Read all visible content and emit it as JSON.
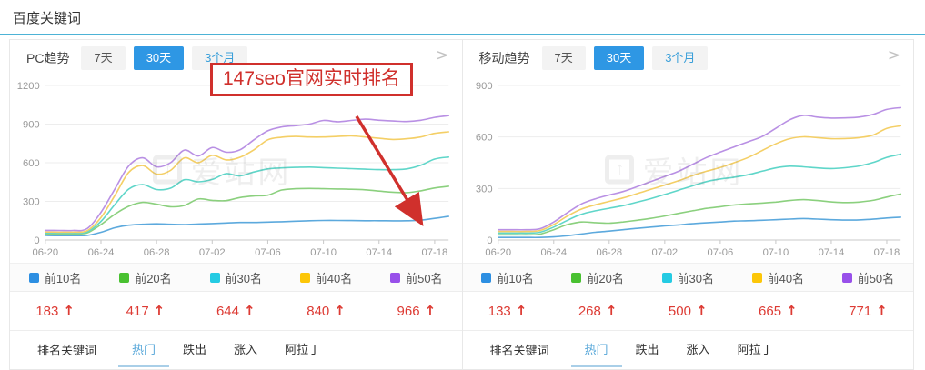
{
  "page": {
    "title": "百度关键词"
  },
  "icons": {
    "chevron_right": ">",
    "up_arrow": "↑",
    "watermark_logo": "↑"
  },
  "watermark": "爱站网",
  "annotation": {
    "text": "147seo官网实时排名",
    "color": "#d0302c"
  },
  "colors": {
    "accent_blue": "#2e97e4",
    "title_rule": "#4db3d6",
    "stat_red": "#dd3b34",
    "top10": "#2d8fe2",
    "top20": "#49c131",
    "top30": "#25cbe3",
    "top40": "#fcc608",
    "top50": "#9850ea"
  },
  "panels": [
    {
      "label": "PC趋势",
      "tabs": [
        {
          "label": "7天",
          "active": false
        },
        {
          "label": "30天",
          "active": true
        },
        {
          "label": "3个月",
          "active": false
        }
      ],
      "legend": [
        {
          "label": "前10名",
          "color": "#2d8fe2"
        },
        {
          "label": "前20名",
          "color": "#49c131"
        },
        {
          "label": "前30名",
          "color": "#25cbe3"
        },
        {
          "label": "前40名",
          "color": "#fcc608"
        },
        {
          "label": "前50名",
          "color": "#9850ea"
        }
      ],
      "values": [
        {
          "value": 183,
          "direction": "up"
        },
        {
          "value": 417,
          "direction": "up"
        },
        {
          "value": 644,
          "direction": "up"
        },
        {
          "value": 840,
          "direction": "up"
        },
        {
          "value": 966,
          "direction": "up"
        }
      ],
      "bottom_tabs": [
        {
          "label": "排名关键词",
          "type": "label"
        },
        {
          "label": "热门",
          "active": true
        },
        {
          "label": "跌出",
          "active": false
        },
        {
          "label": "涨入",
          "active": false
        },
        {
          "label": "阿拉丁",
          "active": false
        }
      ]
    },
    {
      "label": "移动趋势",
      "tabs": [
        {
          "label": "7天",
          "active": false
        },
        {
          "label": "30天",
          "active": true
        },
        {
          "label": "3个月",
          "active": false
        }
      ],
      "legend": [
        {
          "label": "前10名",
          "color": "#2d8fe2"
        },
        {
          "label": "前20名",
          "color": "#49c131"
        },
        {
          "label": "前30名",
          "color": "#25cbe3"
        },
        {
          "label": "前40名",
          "color": "#fcc608"
        },
        {
          "label": "前50名",
          "color": "#9850ea"
        }
      ],
      "values": [
        {
          "value": 133,
          "direction": "up"
        },
        {
          "value": 268,
          "direction": "up"
        },
        {
          "value": 500,
          "direction": "up"
        },
        {
          "value": 665,
          "direction": "up"
        },
        {
          "value": 771,
          "direction": "up"
        }
      ],
      "bottom_tabs": [
        {
          "label": "排名关键词",
          "type": "label"
        },
        {
          "label": "热门",
          "active": true
        },
        {
          "label": "跌出",
          "active": false
        },
        {
          "label": "涨入",
          "active": false
        },
        {
          "label": "阿拉丁",
          "active": false
        }
      ]
    }
  ],
  "chart_data": [
    {
      "type": "line",
      "title": "PC趋势 30天",
      "x": [
        "06-20",
        "06-21",
        "06-22",
        "06-23",
        "06-24",
        "06-25",
        "06-26",
        "06-27",
        "06-28",
        "06-29",
        "06-30",
        "07-01",
        "07-02",
        "07-03",
        "07-04",
        "07-05",
        "07-06",
        "07-07",
        "07-08",
        "07-09",
        "07-10",
        "07-11",
        "07-12",
        "07-13",
        "07-14",
        "07-15",
        "07-16",
        "07-17",
        "07-18",
        "07-19"
      ],
      "x_labeled_every": 4,
      "ylim": [
        0,
        1200
      ],
      "yticks": [
        0,
        300,
        600,
        900,
        1200
      ],
      "grid": true,
      "legend_position": "bottom",
      "series": [
        {
          "name": "前10名",
          "color": "#5ca9dd",
          "values": [
            35,
            34,
            34,
            36,
            60,
            95,
            115,
            122,
            126,
            122,
            120,
            124,
            128,
            132,
            136,
            136,
            139,
            142,
            146,
            150,
            152,
            152,
            151,
            150,
            150,
            149,
            150,
            154,
            168,
            183
          ]
        },
        {
          "name": "前20名",
          "color": "#8bd07e",
          "values": [
            48,
            48,
            48,
            55,
            120,
            200,
            262,
            292,
            278,
            258,
            268,
            318,
            308,
            306,
            330,
            342,
            348,
            388,
            398,
            400,
            398,
            396,
            394,
            390,
            380,
            371,
            368,
            382,
            404,
            417
          ]
        },
        {
          "name": "前30名",
          "color": "#5fd6c9",
          "values": [
            55,
            54,
            54,
            62,
            145,
            275,
            395,
            430,
            392,
            402,
            468,
            452,
            470,
            515,
            498,
            528,
            552,
            560,
            564,
            566,
            562,
            558,
            554,
            550,
            546,
            546,
            552,
            580,
            628,
            644
          ]
        },
        {
          "name": "前40名",
          "color": "#f4cf66",
          "values": [
            62,
            61,
            61,
            72,
            175,
            345,
            525,
            578,
            512,
            540,
            638,
            600,
            658,
            622,
            642,
            700,
            778,
            798,
            804,
            800,
            800,
            804,
            808,
            800,
            790,
            781,
            786,
            800,
            828,
            840
          ]
        },
        {
          "name": "前50名",
          "color": "#b990e4",
          "values": [
            75,
            74,
            74,
            88,
            215,
            395,
            575,
            638,
            568,
            600,
            698,
            652,
            718,
            682,
            700,
            778,
            848,
            878,
            888,
            900,
            928,
            918,
            928,
            938,
            930,
            924,
            920,
            930,
            952,
            966
          ]
        }
      ]
    },
    {
      "type": "line",
      "title": "移动趋势 30天",
      "x": [
        "06-20",
        "06-21",
        "06-22",
        "06-23",
        "06-24",
        "06-25",
        "06-26",
        "06-27",
        "06-28",
        "06-29",
        "06-30",
        "07-01",
        "07-02",
        "07-03",
        "07-04",
        "07-05",
        "07-06",
        "07-07",
        "07-08",
        "07-09",
        "07-10",
        "07-11",
        "07-12",
        "07-13",
        "07-14",
        "07-15",
        "07-16",
        "07-17",
        "07-18",
        "07-19"
      ],
      "x_labeled_every": 4,
      "ylim": [
        0,
        900
      ],
      "yticks": [
        0,
        300,
        600,
        900
      ],
      "grid": true,
      "legend_position": "bottom",
      "series": [
        {
          "name": "前10名",
          "color": "#5ca9dd",
          "values": [
            15,
            15,
            15,
            15,
            18,
            25,
            35,
            45,
            52,
            60,
            68,
            75,
            82,
            88,
            95,
            100,
            105,
            110,
            112,
            115,
            118,
            122,
            125,
            122,
            118,
            116,
            117,
            121,
            128,
            133
          ]
        },
        {
          "name": "前20名",
          "color": "#8bd07e",
          "values": [
            30,
            30,
            30,
            34,
            60,
            90,
            105,
            101,
            98,
            105,
            115,
            126,
            140,
            155,
            170,
            184,
            194,
            204,
            210,
            215,
            221,
            230,
            235,
            230,
            222,
            218,
            221,
            231,
            250,
            268
          ]
        },
        {
          "name": "前30名",
          "color": "#5fd6c9",
          "values": [
            40,
            40,
            40,
            45,
            75,
            115,
            150,
            170,
            185,
            200,
            220,
            241,
            265,
            290,
            315,
            340,
            355,
            366,
            380,
            400,
            420,
            430,
            426,
            420,
            416,
            421,
            431,
            451,
            481,
            500
          ]
        },
        {
          "name": "前40名",
          "color": "#f4cf66",
          "values": [
            50,
            50,
            50,
            55,
            90,
            140,
            180,
            205,
            225,
            245,
            270,
            295,
            320,
            345,
            375,
            400,
            422,
            450,
            480,
            520,
            560,
            590,
            601,
            596,
            590,
            591,
            596,
            611,
            650,
            665
          ]
        },
        {
          "name": "前50名",
          "color": "#b990e4",
          "values": [
            60,
            60,
            60,
            65,
            105,
            160,
            210,
            240,
            262,
            282,
            310,
            340,
            370,
            400,
            440,
            480,
            512,
            542,
            572,
            602,
            650,
            700,
            726,
            716,
            710,
            711,
            716,
            731,
            760,
            771
          ]
        }
      ]
    }
  ]
}
